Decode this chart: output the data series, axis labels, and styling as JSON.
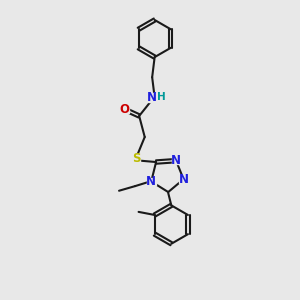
{
  "bg_color": "#e8e8e8",
  "bond_color": "#1a1a1a",
  "N_color": "#2020dd",
  "O_color": "#cc0000",
  "S_color": "#bbbb00",
  "H_color": "#009999",
  "font_size": 8.5,
  "bond_lw": 1.5,
  "dbl_off": 0.055,
  "xlim": [
    1.0,
    7.5
  ],
  "ylim": [
    0.5,
    10.5
  ]
}
